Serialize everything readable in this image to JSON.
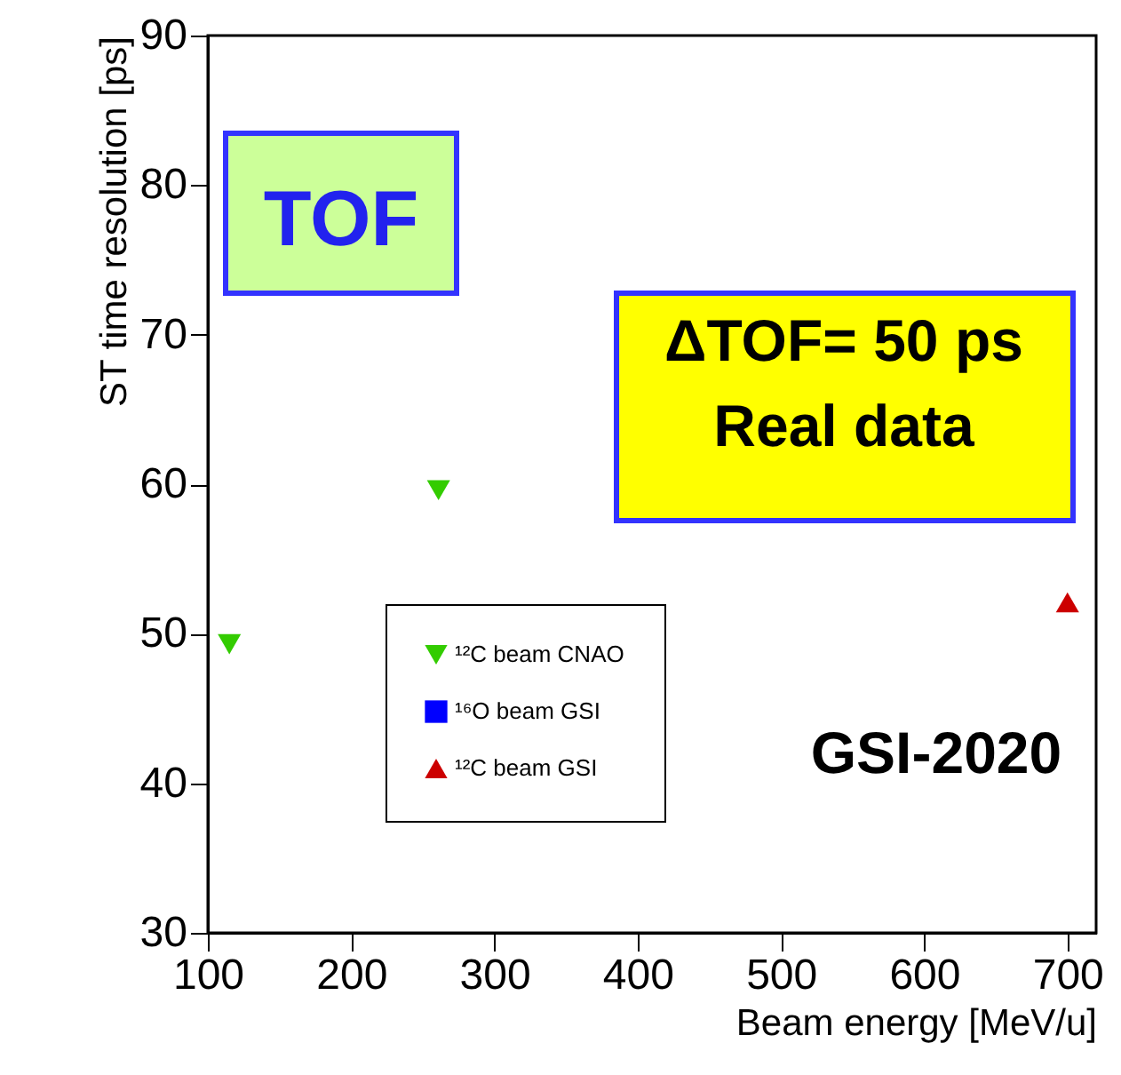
{
  "chart_data": {
    "type": "scatter",
    "xlabel": "Beam energy [MeV/u]",
    "ylabel": "ST time resolution [ps]",
    "xlim": [
      100,
      720
    ],
    "xticks": [
      100,
      200,
      300,
      400,
      500,
      600,
      700
    ],
    "ylim": [
      30,
      90
    ],
    "yticks": [
      30,
      40,
      50,
      60,
      70,
      80,
      90
    ],
    "grid": false,
    "legend": "bottom",
    "series": [
      {
        "name": "¹²C beam CNAO",
        "color": "#33cc00",
        "marker": "triangle-down",
        "x": [
          115,
          261
        ],
        "values": [
          49.3,
          59.6
        ]
      },
      {
        "name": "¹⁶O beam GSI",
        "color": "#0000ff",
        "marker": "square"
      },
      {
        "name": "¹²C beam GSI",
        "color": "#cc0000",
        "marker": "triangle",
        "x": [
          700
        ],
        "values": [
          52.1
        ]
      }
    ],
    "annotations": [
      "TOF",
      "ΔTOF= 50 ps\nReal data",
      "GSI-2020"
    ]
  }
}
